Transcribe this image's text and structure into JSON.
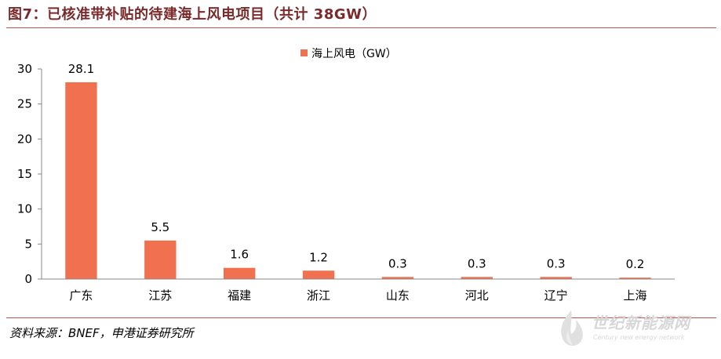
{
  "figure": {
    "title": "图7：已核准带补贴的待建海上风电项目（共计 38GW）",
    "source": "资料来源：BNEF，申港证券研究所"
  },
  "watermark": {
    "text": "世纪新能源网",
    "sub": "Century new energy network"
  },
  "chart_data": {
    "type": "bar",
    "title": "",
    "xlabel": "",
    "ylabel": "",
    "categories": [
      "广东",
      "江苏",
      "福建",
      "浙江",
      "山东",
      "河北",
      "辽宁",
      "上海"
    ],
    "series": [
      {
        "name": "海上风电（GW）",
        "values": [
          28.1,
          5.5,
          1.6,
          1.2,
          0.3,
          0.3,
          0.3,
          0.2
        ],
        "color": "#f07050"
      }
    ],
    "ylim": [
      0,
      30
    ],
    "yticks": [
      0,
      5,
      10,
      15,
      20,
      25,
      30
    ],
    "grid": false,
    "legend": "top-center",
    "data_labels": true
  }
}
